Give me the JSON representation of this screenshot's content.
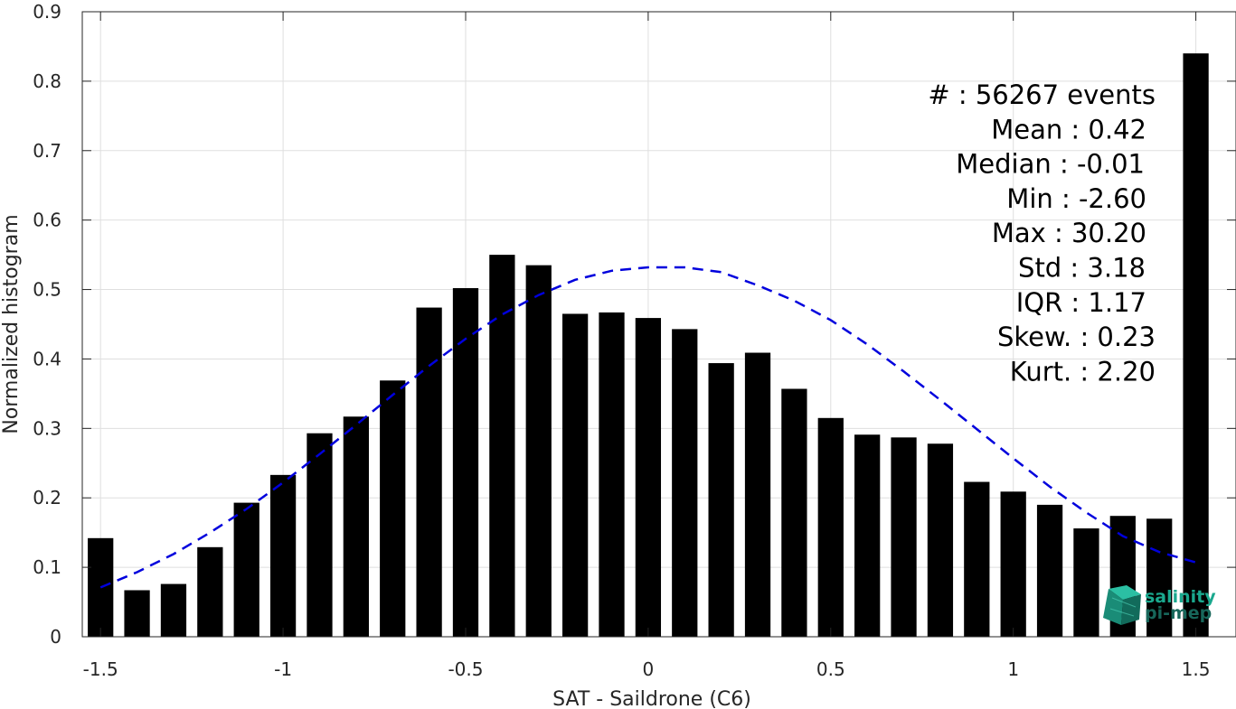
{
  "chart_data": {
    "type": "bar",
    "xlabel": "SAT - Saildrone (C6)",
    "ylabel": "Normalized histogram",
    "xlim": [
      -1.55,
      1.61
    ],
    "ylim": [
      0,
      0.9
    ],
    "xticks": [
      -1.5,
      -1,
      -0.5,
      0,
      0.5,
      1,
      1.5
    ],
    "xtick_labels": [
      "-1.5",
      "-1",
      "-0.5",
      "0",
      "0.5",
      "1",
      "1.5"
    ],
    "yticks": [
      0,
      0.1,
      0.2,
      0.3,
      0.4,
      0.5,
      0.6,
      0.7,
      0.8,
      0.9
    ],
    "ytick_labels": [
      "0",
      "0.1",
      "0.2",
      "0.3",
      "0.4",
      "0.5",
      "0.6",
      "0.7",
      "0.8",
      "0.9"
    ],
    "grid": true,
    "bar_width": 0.07,
    "bars": {
      "x": [
        -1.5,
        -1.4,
        -1.3,
        -1.2,
        -1.1,
        -1.0,
        -0.9,
        -0.8,
        -0.7,
        -0.6,
        -0.5,
        -0.4,
        -0.3,
        -0.2,
        -0.1,
        0.0,
        0.1,
        0.2,
        0.3,
        0.4,
        0.5,
        0.6,
        0.7,
        0.8,
        0.9,
        1.0,
        1.1,
        1.2,
        1.3,
        1.4,
        1.5
      ],
      "values": [
        0.142,
        0.067,
        0.076,
        0.129,
        0.193,
        0.233,
        0.293,
        0.317,
        0.369,
        0.474,
        0.502,
        0.55,
        0.535,
        0.465,
        0.467,
        0.459,
        0.443,
        0.394,
        0.409,
        0.357,
        0.315,
        0.291,
        0.287,
        0.278,
        0.223,
        0.209,
        0.19,
        0.156,
        0.174,
        0.17,
        0.84
      ],
      "color": "#000000"
    },
    "fit_curve": {
      "style": "dashed",
      "color": "#0000dd",
      "x": [
        -1.5,
        -1.4,
        -1.3,
        -1.2,
        -1.1,
        -1.0,
        -0.9,
        -0.8,
        -0.7,
        -0.6,
        -0.5,
        -0.4,
        -0.3,
        -0.2,
        -0.1,
        0.0,
        0.1,
        0.2,
        0.3,
        0.4,
        0.5,
        0.6,
        0.7,
        0.8,
        0.9,
        1.0,
        1.1,
        1.2,
        1.3,
        1.4,
        1.5
      ],
      "y": [
        0.071,
        0.093,
        0.119,
        0.15,
        0.184,
        0.222,
        0.263,
        0.305,
        0.348,
        0.39,
        0.429,
        0.464,
        0.492,
        0.514,
        0.527,
        0.532,
        0.532,
        0.525,
        0.506,
        0.484,
        0.456,
        0.421,
        0.382,
        0.341,
        0.299,
        0.257,
        0.216,
        0.179,
        0.145,
        0.122,
        0.107
      ]
    },
    "annotations": [
      "#  : 56267 events",
      "Mean : 0.42",
      "Median : -0.01",
      "Min : -2.60",
      "Max : 30.20",
      "Std : 3.18",
      "IQR : 1.17",
      "Skew. : 0.23",
      "Kurt. : 2.20"
    ]
  },
  "logo": {
    "line1": "salinity",
    "line2": "pi-mep",
    "color1": "#1aa88e",
    "color2": "#17665a"
  }
}
